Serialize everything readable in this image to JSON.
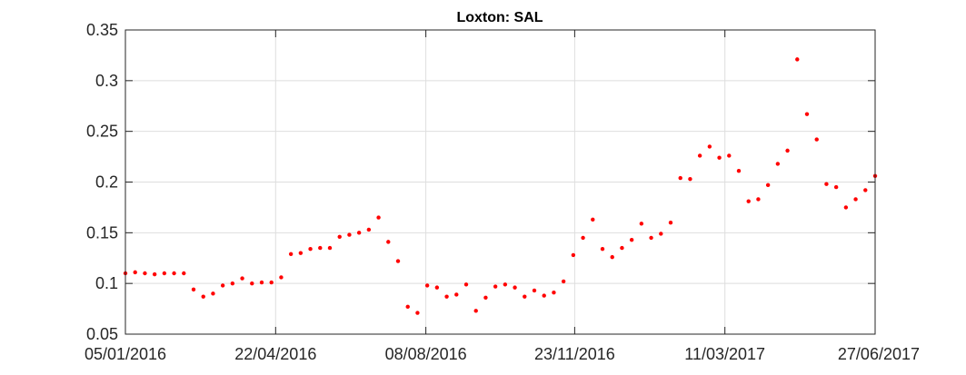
{
  "chart_data": {
    "type": "scatter",
    "title": "Loxton: SAL",
    "xlabel": "",
    "ylabel": "",
    "xlim": [
      "05/01/2016",
      "27/06/2017"
    ],
    "ylim": [
      0.05,
      0.35
    ],
    "x_ticks": [
      "05/01/2016",
      "22/04/2016",
      "08/08/2016",
      "23/11/2016",
      "11/03/2017",
      "27/06/2017"
    ],
    "y_ticks": [
      "0.05",
      "0.1",
      "0.15",
      "0.2",
      "0.25",
      "0.3",
      "0.35"
    ],
    "grid": true,
    "marker_color": "#ff0000",
    "series": [
      {
        "x": [
          "05/01/2016",
          "12/01/2016",
          "19/01/2016",
          "26/01/2016",
          "02/02/2016",
          "09/02/2016",
          "16/02/2016",
          "23/02/2016",
          "01/03/2016",
          "08/03/2016",
          "15/03/2016",
          "22/03/2016",
          "29/03/2016",
          "05/04/2016",
          "12/04/2016",
          "19/04/2016",
          "26/04/2016",
          "03/05/2016",
          "10/05/2016",
          "17/05/2016",
          "24/05/2016",
          "31/05/2016",
          "07/06/2016",
          "14/06/2016",
          "21/06/2016",
          "28/06/2016",
          "05/07/2016",
          "12/07/2016",
          "19/07/2016",
          "26/07/2016",
          "02/08/2016",
          "09/08/2016",
          "16/08/2016",
          "23/08/2016",
          "30/08/2016",
          "06/09/2016",
          "13/09/2016",
          "20/09/2016",
          "27/09/2016",
          "04/10/2016",
          "11/10/2016",
          "18/10/2016",
          "25/10/2016",
          "01/11/2016",
          "08/11/2016",
          "15/11/2016",
          "22/11/2016",
          "29/11/2016",
          "06/12/2016",
          "13/12/2016",
          "20/12/2016",
          "27/12/2016",
          "03/01/2017",
          "10/01/2017",
          "17/01/2017",
          "24/01/2017",
          "31/01/2017",
          "07/02/2017",
          "14/02/2017",
          "21/02/2017",
          "28/02/2017",
          "07/03/2017",
          "14/03/2017",
          "21/03/2017",
          "28/03/2017",
          "04/04/2017",
          "11/04/2017",
          "18/04/2017",
          "25/04/2017",
          "02/05/2017",
          "09/05/2017",
          "16/05/2017",
          "23/05/2017",
          "30/05/2017",
          "06/06/2017",
          "13/06/2017",
          "20/06/2017",
          "27/06/2017"
        ],
        "y": [
          0.11,
          0.111,
          0.11,
          0.109,
          0.11,
          0.11,
          0.11,
          0.094,
          0.087,
          0.09,
          0.098,
          0.1,
          0.105,
          0.1,
          0.101,
          0.101,
          0.106,
          0.129,
          0.13,
          0.134,
          0.135,
          0.135,
          0.146,
          0.148,
          0.15,
          0.153,
          0.165,
          0.141,
          0.122,
          0.077,
          0.071,
          0.098,
          0.096,
          0.087,
          0.089,
          0.099,
          0.073,
          0.086,
          0.097,
          0.099,
          0.096,
          0.087,
          0.093,
          0.088,
          0.091,
          0.102,
          0.128,
          0.145,
          0.163,
          0.134,
          0.126,
          0.135,
          0.143,
          0.159,
          0.145,
          0.149,
          0.16,
          0.204,
          0.203,
          0.226,
          0.235,
          0.224,
          0.226,
          0.211,
          0.181,
          0.183,
          0.197,
          0.218,
          0.231,
          0.321,
          0.267,
          0.242,
          0.198,
          0.195,
          0.175,
          0.183,
          0.192,
          0.206
        ]
      }
    ]
  }
}
